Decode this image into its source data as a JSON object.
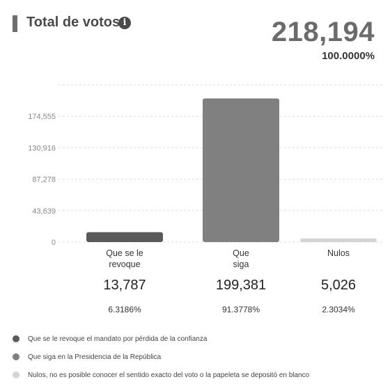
{
  "header": {
    "title": "Total de votos",
    "info_icon": "info-icon",
    "total": "218,194",
    "total_percent": "100.0000%"
  },
  "chart_data": {
    "type": "bar",
    "categories": [
      "Que se le revoque",
      "Que siga",
      "Nulos"
    ],
    "category_lines": [
      [
        "Que se le",
        "revoque"
      ],
      [
        "Que",
        "siga"
      ],
      [
        "Nulos"
      ]
    ],
    "values": [
      13787,
      199381,
      5026
    ],
    "value_labels": [
      "13,787",
      "199,381",
      "5,026"
    ],
    "percent_labels": [
      "6.3186%",
      "91.3778%",
      "2.3034%"
    ],
    "colors": [
      "#5a5a5a",
      "#808080",
      "#d4d4d4"
    ],
    "yticks": [
      0,
      43639,
      87278,
      130916,
      174555
    ],
    "ytick_labels": [
      "0",
      "43,639",
      "87,278",
      "130,916",
      "174,555"
    ],
    "ylim": [
      0,
      218194
    ],
    "grid": true,
    "legend_position": "bottom"
  },
  "legend": [
    {
      "label": "Que se le revoque el mandato por pérdida de la confianza",
      "color": "#5a5a5a"
    },
    {
      "label": "Que siga en la Presidencia de la República",
      "color": "#808080"
    },
    {
      "label": "Nulos, no es posible conocer el sentido exacto del voto o la papeleta se depositó en blanco",
      "color": "#d4d4d4"
    }
  ]
}
